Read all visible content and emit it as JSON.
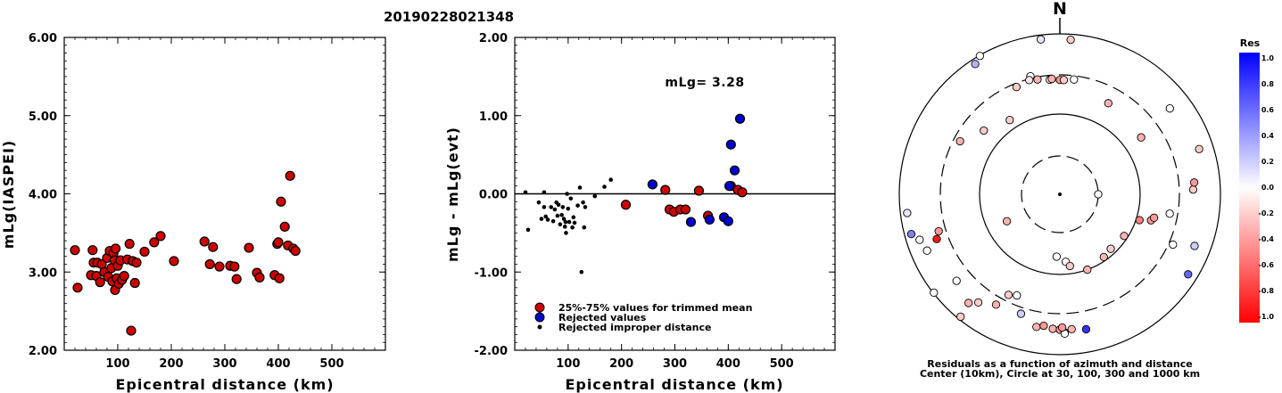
{
  "title": "20190228021348",
  "left_panel": {
    "ylabel": "mLg(IASPEI)",
    "xlabel": "Epicentral distance (km)",
    "yticks": [
      "2.00",
      "3.00",
      "4.00",
      "5.00",
      "6.00"
    ],
    "xticks": [
      "100",
      "200",
      "300",
      "400",
      "500"
    ]
  },
  "mid_panel": {
    "ylabel": "mLg - mLg(evt)",
    "xlabel": "Epicentral distance (km)",
    "yticks": [
      "-2.00",
      "-1.00",
      "0.00",
      "1.00",
      "2.00"
    ],
    "xticks": [
      "100",
      "200",
      "300",
      "400",
      "500"
    ],
    "annotation": "mLg= 3.28",
    "legend": [
      "25%-75% values for trimmed mean",
      "Rejected values",
      "Rejected improper distance"
    ]
  },
  "polar_panel": {
    "north_label": "N",
    "caption_line1": "Residuals as a function of azimuth and distance",
    "caption_line2": "Center (10km), Circle at 30, 100, 300 and 1000 km",
    "colorbar_title": "Res",
    "colorbar_ticks": [
      "1.0",
      "0.8",
      "0.6",
      "0.4",
      "0.2",
      "0.0",
      "-0.2",
      "-0.4",
      "-0.6",
      "-0.8",
      "-1.0"
    ]
  },
  "colors": {
    "used": "#cc0000",
    "rejected": "#0000cc",
    "improper": "#000000"
  },
  "chart_data": [
    {
      "type": "scatter",
      "ylabel": "mLg(IASPEI)",
      "xlabel": "Epicentral distance (km)",
      "xlim": [
        0,
        600
      ],
      "ylim": [
        2,
        6
      ],
      "series": [
        {
          "name": "25%-75% values for trimmed mean",
          "points": [
            [
              20,
              3.28
            ],
            [
              25,
              2.8
            ],
            [
              50,
              2.96
            ],
            [
              53,
              3.28
            ],
            [
              55,
              3.12
            ],
            [
              60,
              2.95
            ],
            [
              62,
              3.12
            ],
            [
              67,
              2.87
            ],
            [
              70,
              3.1
            ],
            [
              75,
              3.0
            ],
            [
              80,
              3.18
            ],
            [
              82,
              2.94
            ],
            [
              85,
              3.27
            ],
            [
              88,
              3.05
            ],
            [
              90,
              2.88
            ],
            [
              92,
              3.24
            ],
            [
              94,
              3.15
            ],
            [
              95,
              2.77
            ],
            [
              96,
              3.3
            ],
            [
              98,
              2.92
            ],
            [
              100,
              3.08
            ],
            [
              102,
              2.85
            ],
            [
              105,
              3.15
            ],
            [
              108,
              2.9
            ],
            [
              112,
              2.95
            ],
            [
              118,
              3.16
            ],
            [
              122,
              3.36
            ],
            [
              125,
              2.25
            ],
            [
              128,
              3.14
            ],
            [
              132,
              2.86
            ],
            [
              135,
              3.12
            ],
            [
              150,
              3.26
            ],
            [
              168,
              3.38
            ],
            [
              180,
              3.46
            ],
            [
              205,
              3.14
            ],
            [
              262,
              3.39
            ],
            [
              272,
              3.1
            ],
            [
              278,
              3.32
            ],
            [
              290,
              3.07
            ],
            [
              310,
              3.08
            ],
            [
              318,
              3.07
            ],
            [
              322,
              2.91
            ],
            [
              345,
              3.31
            ],
            [
              360,
              2.99
            ],
            [
              365,
              2.93
            ],
            [
              393,
              2.96
            ],
            [
              398,
              3.36
            ],
            [
              400,
              3.38
            ],
            [
              402,
              2.92
            ],
            [
              405,
              3.9
            ],
            [
              412,
              3.58
            ],
            [
              418,
              3.34
            ],
            [
              422,
              4.23
            ],
            [
              428,
              3.3
            ],
            [
              432,
              3.27
            ]
          ]
        }
      ]
    },
    {
      "type": "scatter",
      "ylabel": "mLg - mLg(evt)",
      "xlabel": "Epicentral distance (km)",
      "xlim": [
        0,
        600
      ],
      "ylim": [
        -2,
        2
      ],
      "annotation": "mLg= 3.28",
      "series": [
        {
          "name": "25%-75% values for trimmed mean",
          "points": [
            [
              208,
              -0.14
            ],
            [
              282,
              0.05
            ],
            [
              290,
              -0.2
            ],
            [
              298,
              -0.23
            ],
            [
              310,
              -0.2
            ],
            [
              320,
              -0.2
            ],
            [
              345,
              0.04
            ],
            [
              362,
              -0.28
            ],
            [
              405,
              0.1
            ],
            [
              418,
              0.05
            ],
            [
              426,
              0.02
            ]
          ]
        },
        {
          "name": "Rejected values",
          "points": [
            [
              258,
              0.12
            ],
            [
              330,
              -0.36
            ],
            [
              365,
              -0.33
            ],
            [
              392,
              -0.3
            ],
            [
              400,
              -0.35
            ],
            [
              402,
              0.1
            ],
            [
              405,
              0.63
            ],
            [
              412,
              0.3
            ],
            [
              422,
              0.96
            ]
          ]
        },
        {
          "name": "Rejected improper distance",
          "points": [
            [
              20,
              0.02
            ],
            [
              25,
              -0.46
            ],
            [
              45,
              -0.11
            ],
            [
              50,
              -0.32
            ],
            [
              55,
              0.02
            ],
            [
              55,
              -0.17
            ],
            [
              58,
              -0.29
            ],
            [
              62,
              -0.33
            ],
            [
              68,
              -0.17
            ],
            [
              72,
              -0.35
            ],
            [
              75,
              -0.2
            ],
            [
              78,
              -0.11
            ],
            [
              80,
              -0.28
            ],
            [
              82,
              -0.14
            ],
            [
              85,
              -0.39
            ],
            [
              88,
              -0.27
            ],
            [
              90,
              -0.17
            ],
            [
              92,
              -0.32
            ],
            [
              94,
              -0.42
            ],
            [
              95,
              -0.36
            ],
            [
              96,
              -0.5
            ],
            [
              98,
              0.0
            ],
            [
              100,
              -0.19
            ],
            [
              102,
              -0.36
            ],
            [
              105,
              -0.06
            ],
            [
              108,
              -0.43
            ],
            [
              110,
              -0.3
            ],
            [
              112,
              -0.37
            ],
            [
              118,
              -0.15
            ],
            [
              122,
              0.08
            ],
            [
              125,
              -1.0
            ],
            [
              128,
              -0.11
            ],
            [
              130,
              -0.43
            ],
            [
              132,
              -0.17
            ],
            [
              150,
              -0.03
            ],
            [
              168,
              0.09
            ],
            [
              180,
              0.18
            ]
          ]
        }
      ]
    },
    {
      "type": "scatter",
      "subtype": "polar",
      "rings_km": [
        30,
        100,
        300,
        1000
      ],
      "center_km": 10,
      "colorbar_range": [
        -1.0,
        1.0
      ],
      "points": [
        {
          "az": 4,
          "dist_km": 850,
          "res": -0.2
        },
        {
          "az": 353,
          "dist_km": 880,
          "res": 0.1
        },
        {
          "az": 330,
          "dist_km": 980,
          "res": 0.0
        },
        {
          "az": 327,
          "dist_km": 860,
          "res": 0.3
        },
        {
          "az": 346,
          "dist_km": 320,
          "res": 0.0
        },
        {
          "az": 345,
          "dist_km": 290,
          "res": -0.1
        },
        {
          "az": 349,
          "dist_km": 280,
          "res": -0.3
        },
        {
          "az": 355,
          "dist_km": 265,
          "res": 0.0
        },
        {
          "az": 356,
          "dist_km": 270,
          "res": -0.3
        },
        {
          "az": 0,
          "dist_km": 260,
          "res": -0.4
        },
        {
          "az": 2,
          "dist_km": 260,
          "res": -0.2
        },
        {
          "az": 7,
          "dist_km": 270,
          "res": 0.0
        },
        {
          "az": 338,
          "dist_km": 270,
          "res": -0.2
        },
        {
          "az": 326,
          "dist_km": 130,
          "res": -0.2
        },
        {
          "az": 310,
          "dist_km": 170,
          "res": -0.2
        },
        {
          "az": 28,
          "dist_km": 190,
          "res": -0.3
        },
        {
          "az": 55,
          "dist_km": 170,
          "res": -0.3
        },
        {
          "az": 90,
          "dist_km": 30,
          "res": 0.0
        },
        {
          "az": 298,
          "dist_km": 250,
          "res": -0.3
        },
        {
          "az": 253,
          "dist_km": 370,
          "res": -0.4
        },
        {
          "az": 247,
          "dist_km": 620,
          "res": 0.0
        },
        {
          "az": 263,
          "dist_km": 820,
          "res": 0.1
        },
        {
          "az": 255,
          "dist_km": 820,
          "res": 0.5
        },
        {
          "az": 252,
          "dist_km": 680,
          "res": 0.0
        },
        {
          "az": 250,
          "dist_km": 420,
          "res": -0.9
        },
        {
          "az": 243,
          "dist_km": 55,
          "res": -0.3
        },
        {
          "az": 183,
          "dist_km": 60,
          "res": 0.0
        },
        {
          "az": 175,
          "dist_km": 70,
          "res": 0.0
        },
        {
          "az": 172,
          "dist_km": 80,
          "res": -0.2
        },
        {
          "az": 160,
          "dist_km": 100,
          "res": -0.3
        },
        {
          "az": 145,
          "dist_km": 90,
          "res": -0.3
        },
        {
          "az": 137,
          "dist_km": 85,
          "res": -0.2
        },
        {
          "az": 123,
          "dist_km": 90,
          "res": -0.3
        },
        {
          "az": 108,
          "dist_km": 110,
          "res": -0.5
        },
        {
          "az": 106,
          "dist_km": 150,
          "res": -0.4
        },
        {
          "az": 104,
          "dist_km": 160,
          "res": -0.4
        },
        {
          "az": 100,
          "dist_km": 240,
          "res": 0.0
        },
        {
          "az": 88,
          "dist_km": 450,
          "res": -0.2
        },
        {
          "az": 85,
          "dist_km": 470,
          "res": -0.4
        },
        {
          "az": 52,
          "dist_km": 540,
          "res": 0.0
        },
        {
          "az": 72,
          "dist_km": 660,
          "res": -0.2
        },
        {
          "az": 114,
          "dist_km": 340,
          "res": 0.0
        },
        {
          "az": 111,
          "dist_km": 620,
          "res": 0.2
        },
        {
          "az": 122,
          "dist_km": 760,
          "res": 0.6
        },
        {
          "az": 207,
          "dist_km": 250,
          "res": -0.2
        },
        {
          "az": 203,
          "dist_km": 230,
          "res": 0.0
        },
        {
          "az": 210,
          "dist_km": 380,
          "res": -0.3
        },
        {
          "az": 198,
          "dist_km": 360,
          "res": 0.2
        },
        {
          "az": 190,
          "dist_km": 470,
          "res": -0.3
        },
        {
          "az": 187,
          "dist_km": 440,
          "res": -0.4
        },
        {
          "az": 183,
          "dist_km": 470,
          "res": -0.3
        },
        {
          "az": 180,
          "dist_km": 480,
          "res": -0.4
        },
        {
          "az": 178,
          "dist_km": 520,
          "res": -0.2
        },
        {
          "az": 175,
          "dist_km": 480,
          "res": -0.3
        },
        {
          "az": 169,
          "dist_km": 510,
          "res": 0.8
        },
        {
          "az": 178,
          "dist_km": 540,
          "res": 0.0
        },
        {
          "az": 179,
          "dist_km": 450,
          "res": -0.4
        },
        {
          "az": 217,
          "dist_km": 480,
          "res": -0.2
        },
        {
          "az": 230,
          "dist_km": 470,
          "res": 0.0
        },
        {
          "az": 220,
          "dist_km": 580,
          "res": -0.3
        },
        {
          "az": 232,
          "dist_km": 980,
          "res": 0.0
        },
        {
          "az": 219,
          "dist_km": 920,
          "res": -0.2
        }
      ]
    }
  ]
}
